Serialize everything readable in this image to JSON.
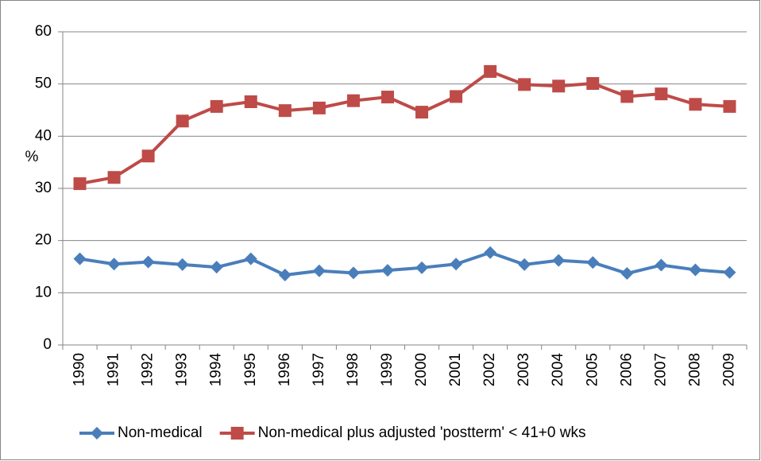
{
  "chart_data": {
    "type": "line",
    "y_label": "%",
    "categories": [
      "1990",
      "1991",
      "1992",
      "1993",
      "1994",
      "1995",
      "1996",
      "1997",
      "1998",
      "1999",
      "2000",
      "2001",
      "2002",
      "2003",
      "2004",
      "2005",
      "2006",
      "2007",
      "2008",
      "2009"
    ],
    "series": [
      {
        "name": "Non-medical",
        "color": "#4a7ebb",
        "marker": "diamond",
        "values": [
          16.5,
          15.5,
          15.9,
          15.4,
          14.9,
          16.5,
          13.4,
          14.2,
          13.8,
          14.3,
          14.8,
          15.5,
          17.7,
          15.4,
          16.2,
          15.8,
          13.7,
          15.3,
          14.4,
          13.9
        ]
      },
      {
        "name": "Non-medical plus adjusted 'postterm' < 41+0 wks",
        "color": "#be4b48",
        "marker": "square",
        "values": [
          30.9,
          32.1,
          36.2,
          42.9,
          45.7,
          46.6,
          44.9,
          45.4,
          46.8,
          47.5,
          44.6,
          47.6,
          52.4,
          49.9,
          49.6,
          50.1,
          47.6,
          48.1,
          46.1,
          45.7
        ]
      }
    ],
    "ylim": [
      0,
      60
    ],
    "yticks": [
      0,
      10,
      20,
      30,
      40,
      50,
      60
    ],
    "grid": true
  }
}
